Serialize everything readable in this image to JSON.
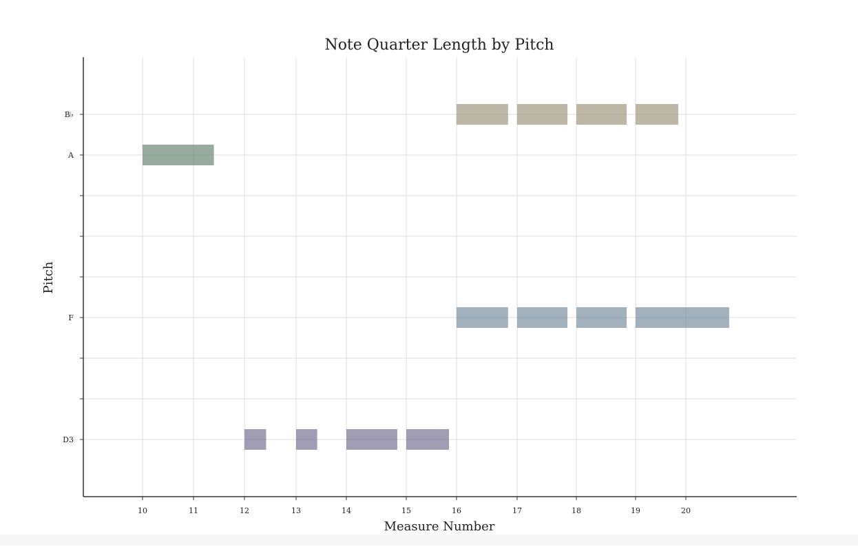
{
  "chart_data": {
    "type": "bar",
    "title": "Note Quarter Length by Pitch",
    "xlabel": "Measure Number",
    "ylabel": "Pitch",
    "grid": true,
    "x_ticks": [
      {
        "value": 10,
        "label": "10"
      },
      {
        "value": 11,
        "label": "11"
      },
      {
        "value": 12,
        "label": "12"
      },
      {
        "value": 13,
        "label": "13"
      },
      {
        "value": 14,
        "label": "14"
      },
      {
        "value": 15,
        "label": "15"
      },
      {
        "value": 16,
        "label": "16"
      },
      {
        "value": 17,
        "label": "17"
      },
      {
        "value": 18,
        "label": "18"
      },
      {
        "value": 19,
        "label": "19"
      },
      {
        "value": 20,
        "label": "20"
      }
    ],
    "y_ticks": [
      {
        "value": 10,
        "label": "B♭"
      },
      {
        "value": 9,
        "label": "A"
      },
      {
        "value": 8,
        "label": ""
      },
      {
        "value": 7,
        "label": ""
      },
      {
        "value": 6,
        "label": ""
      },
      {
        "value": 5,
        "label": "F"
      },
      {
        "value": 4,
        "label": ""
      },
      {
        "value": 3,
        "label": ""
      },
      {
        "value": 2,
        "label": "D3"
      }
    ],
    "series": [
      {
        "color": "#9a9078",
        "pitch": "B♭",
        "pitch_value": 10,
        "notes": [
          {
            "start": 16.0,
            "end": 16.85
          },
          {
            "start": 17.0,
            "end": 17.85
          },
          {
            "start": 18.0,
            "end": 18.85
          },
          {
            "start": 19.0,
            "end": 19.85
          }
        ]
      },
      {
        "color": "#60806a",
        "pitch": "A",
        "pitch_value": 9,
        "notes": [
          {
            "start": 10.0,
            "end": 11.0
          },
          {
            "start": 11.0,
            "end": 11.4
          }
        ]
      },
      {
        "color": "#728799",
        "pitch": "F",
        "pitch_value": 5,
        "notes": [
          {
            "start": 16.0,
            "end": 16.85
          },
          {
            "start": 17.0,
            "end": 17.85
          },
          {
            "start": 18.0,
            "end": 18.85
          },
          {
            "start": 19.0,
            "end": 20.85
          }
        ]
      },
      {
        "color": "#6e6a8c",
        "pitch": "D3",
        "pitch_value": 2,
        "notes": [
          {
            "start": 12.0,
            "end": 12.42
          },
          {
            "start": 13.0,
            "end": 13.42
          },
          {
            "start": 14.0,
            "end": 14.85
          },
          {
            "start": 15.0,
            "end": 15.85
          }
        ]
      }
    ]
  }
}
